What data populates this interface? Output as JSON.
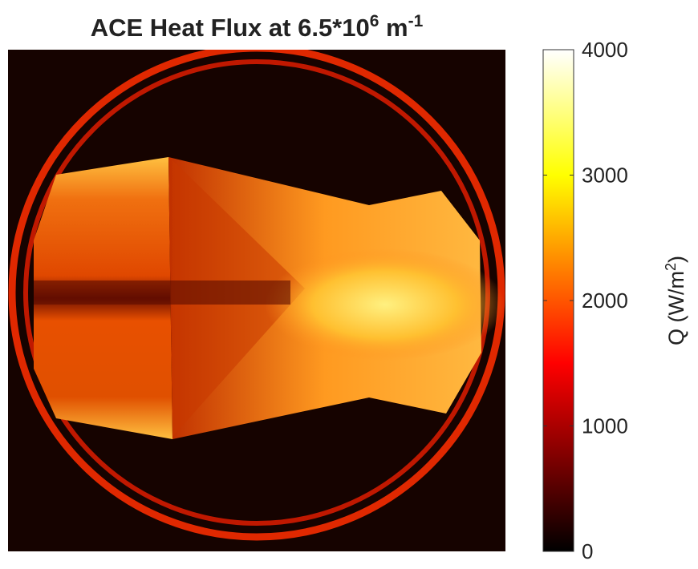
{
  "chart_data": {
    "type": "image",
    "title": {
      "base": "ACE Heat Flux at 6.5*10",
      "exp": "6",
      "unit": " m",
      "unit_exp": "-1"
    },
    "colorbar": {
      "label": {
        "base": "Q (W/m",
        "exp": "2",
        "end": ")"
      },
      "colormap": "hot",
      "clim": [
        0,
        4000
      ],
      "ticks": [
        0,
        1000,
        2000,
        3000,
        4000
      ]
    }
  }
}
